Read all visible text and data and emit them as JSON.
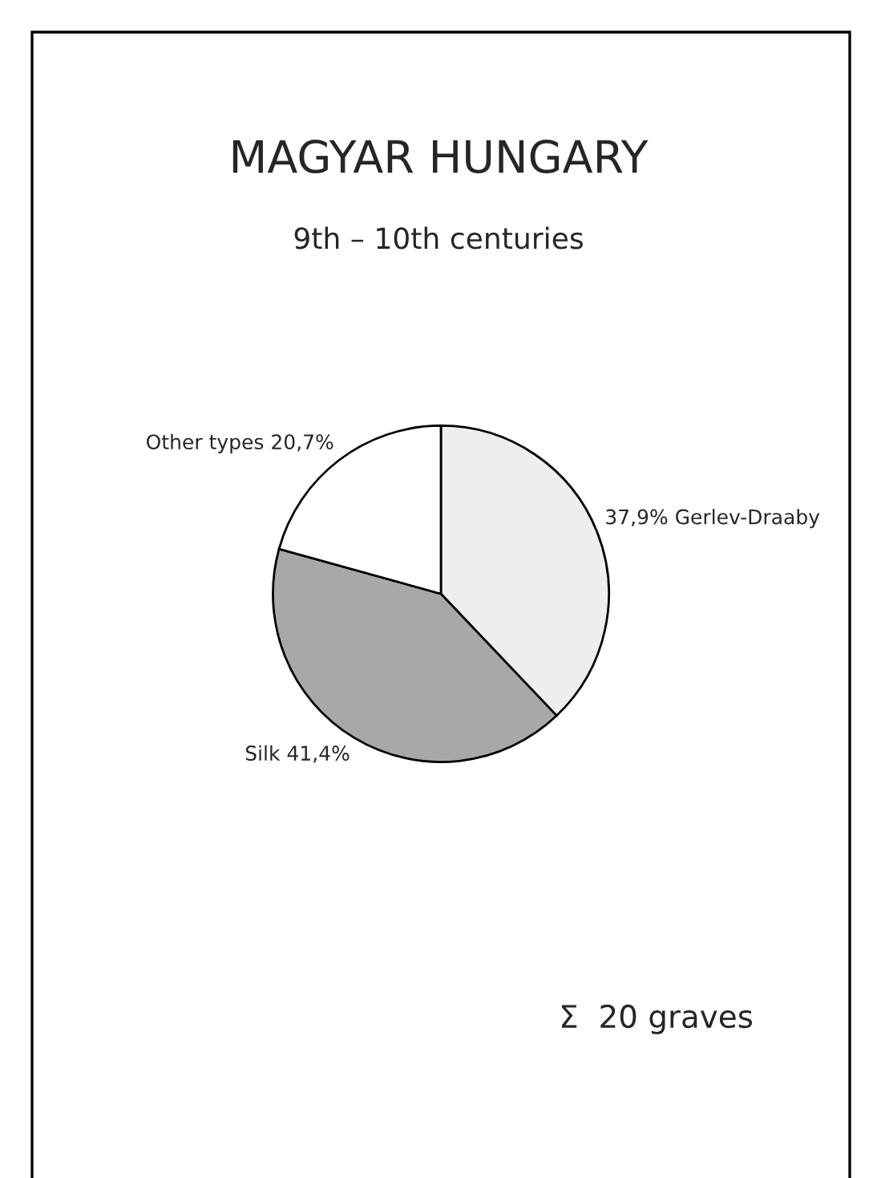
{
  "chart_data": {
    "type": "pie",
    "title": "MAGYAR HUNGARY",
    "subtitle": "9th – 10th centuries",
    "categories": [
      "Gerlev-Draaby",
      "Silk",
      "Other types"
    ],
    "values": [
      37.9,
      41.4,
      20.7
    ],
    "value_labels": [
      "37,9%",
      "41,4%",
      "20,7%"
    ],
    "colors": [
      "#eeeeee",
      "#a8a8a8",
      "#ffffff"
    ],
    "annotations": [
      "Σ  20 graves"
    ]
  }
}
